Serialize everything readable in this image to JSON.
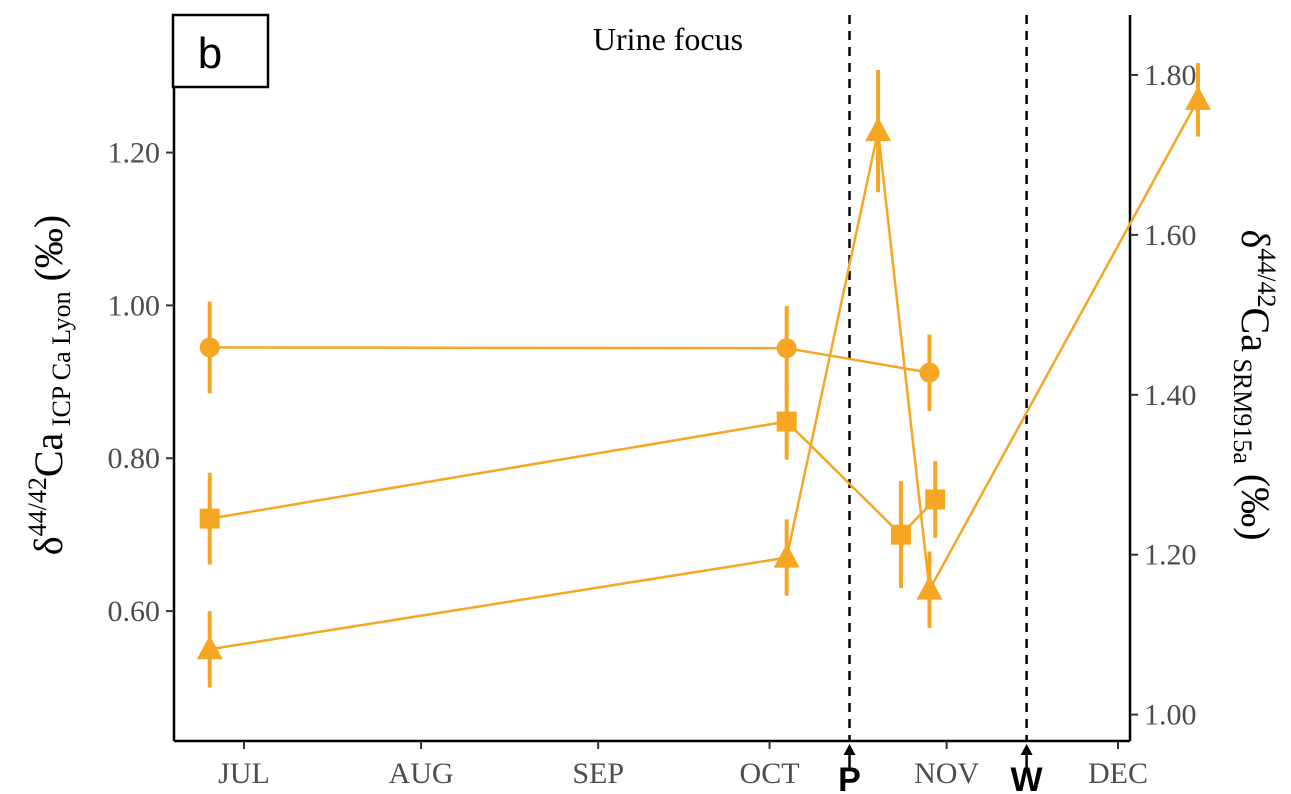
{
  "chart_data": {
    "type": "line",
    "title": "Urine focus",
    "panel_label": "b",
    "color": "#F5A623",
    "x_labels": [
      "JUL",
      "AUG",
      "SEP",
      "OCT",
      "NOV",
      "DEC"
    ],
    "y_left": {
      "ticks": [
        "0.60",
        "0.80",
        "1.00",
        "1.20"
      ],
      "range": [
        0.43,
        1.38
      ],
      "label_main": "δ",
      "label_sup": "44/42",
      "label_ca": "Ca",
      "label_sub": " ICP Ca Lyon",
      "label_unit": " (‰)"
    },
    "y_right": {
      "ticks": [
        "1.00",
        "1.20",
        "1.40",
        "1.60",
        "1.80"
      ],
      "range": [
        0.967,
        1.875
      ],
      "label_main": "δ",
      "label_sup": "44/42",
      "label_ca": "Ca",
      "label_sub": " SRM915a",
      "label_unit": " (‰)"
    },
    "vlines": [
      {
        "label": "P"
      },
      {
        "label": "W"
      }
    ],
    "series": [
      {
        "shape": "circle",
        "points": [
          {
            "x": "Jun 25",
            "y": 0.945,
            "err": 0.06
          },
          {
            "x": "Oct 4",
            "y": 0.944,
            "err": 0.055
          },
          {
            "x": "Oct 29",
            "y": 0.912,
            "err": 0.05
          }
        ]
      },
      {
        "shape": "square",
        "points": [
          {
            "x": "Jun 25",
            "y": 0.721,
            "err": 0.06
          },
          {
            "x": "Oct 4",
            "y": 0.848,
            "err": 0.05
          },
          {
            "x": "Oct 24",
            "y": 0.7,
            "err": 0.07
          },
          {
            "x": "Oct 30",
            "y": 0.746,
            "err": 0.05
          }
        ]
      },
      {
        "shape": "triangle",
        "points": [
          {
            "x": "Jun 25",
            "y": 0.55,
            "err": 0.05
          },
          {
            "x": "Oct 4",
            "y": 0.67,
            "err": 0.05
          },
          {
            "x": "Oct 20",
            "y": 1.228,
            "err": 0.08
          },
          {
            "x": "Oct 29",
            "y": 0.628,
            "err": 0.05
          },
          {
            "x": "Dec 15",
            "y": 1.269,
            "err": 0.048
          }
        ]
      }
    ]
  }
}
